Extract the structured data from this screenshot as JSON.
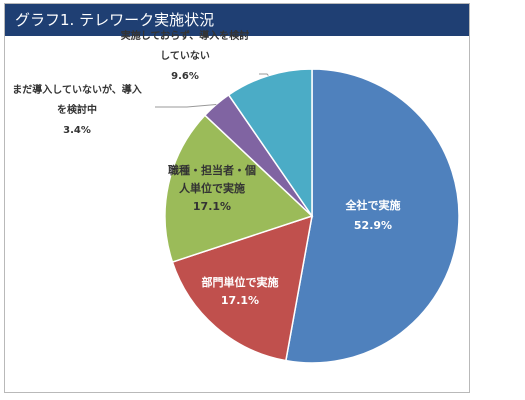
{
  "title": "グラフ1. テレワーク実施状況",
  "colors": {
    "header_bg": "#1f3f73",
    "slice_zensha": "#4f81bd",
    "slice_bumon": "#c0504d",
    "slice_shokushu": "#9bbb59",
    "slice_kento": "#8064a2",
    "slice_mikento": "#4bacc6"
  },
  "chart_data": {
    "type": "pie",
    "title": "グラフ1. テレワーク実施状況",
    "slices": [
      {
        "label": "全社で実施",
        "value": 52.9,
        "value_label": "52.9%",
        "color": "#4f81bd"
      },
      {
        "label": "部門単位で実施",
        "value": 17.1,
        "value_label": "17.1%",
        "color": "#c0504d"
      },
      {
        "label": "職種・担当者・個人単位で実施",
        "label_lines": [
          "職種・担当者・個",
          "人単位で実施"
        ],
        "value": 17.1,
        "value_label": "17.1%",
        "color": "#9bbb59"
      },
      {
        "label": "まだ導入していないが、導入を検討中",
        "label_lines": [
          "まだ導入していないが、導入",
          "を検討中"
        ],
        "value": 3.4,
        "value_label": "3.4%",
        "color": "#8064a2"
      },
      {
        "label": "実施しておらず、導入を検討していない",
        "label_lines": [
          "実施しておらず、導入を検討",
          "していない"
        ],
        "value": 9.6,
        "value_label": "9.6%",
        "color": "#4bacc6"
      }
    ],
    "start_angle_deg": 0,
    "direction": "clockwise",
    "legend": "none"
  }
}
